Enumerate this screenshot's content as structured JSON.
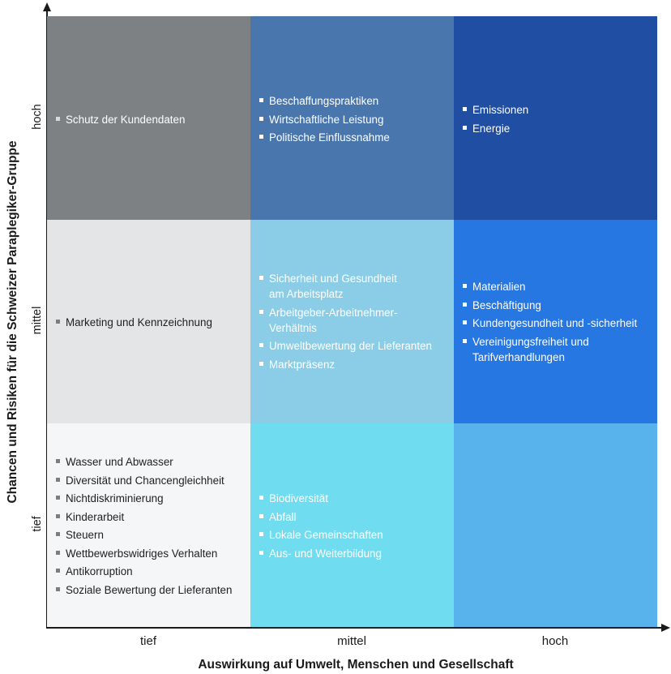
{
  "axis_titles": {
    "y": "Chancen und Risiken für die Schweizer Paraplegiker-Gruppe",
    "x": "Auswirkung auf Umwelt, Menschen und Gesellschaft"
  },
  "y_levels": [
    "hoch",
    "mittel",
    "tief"
  ],
  "x_levels": [
    "tief",
    "mittel",
    "hoch"
  ],
  "colors": {
    "hoch-tief": "#7e8184",
    "hoch-mittel": "#4976ad",
    "hoch-hoch": "#1f4ea2",
    "mittel-tief": "#e3e5e7",
    "mittel-mittel": "#8bcde6",
    "mittel-hoch": "#2677e2",
    "tief-tief": "#f5f6f7",
    "tief-mittel": "#6fdcf0",
    "tief-hoch": "#58b3ec"
  },
  "cells": {
    "hoch-tief": [
      "Schutz der Kundendaten"
    ],
    "hoch-mittel": [
      "Beschaffungspraktiken",
      "Wirtschaftliche Leistung",
      "Politische Einflussnahme"
    ],
    "hoch-hoch": [
      "Emissionen",
      "Energie"
    ],
    "mittel-tief": [
      "Marketing und Kennzeichnung"
    ],
    "mittel-mittel": [
      "Sicherheit und Gesundheit\nam Arbeitsplatz",
      "Arbeitgeber-Arbeitnehmer-\nVerhältnis",
      "Umweltbewertung der Lieferanten",
      "Marktpräsenz"
    ],
    "mittel-hoch": [
      "Materialien",
      "Beschäftigung",
      "Kundengesundheit und -sicherheit",
      "Vereinigungsfreiheit und\nTarifverhandlungen"
    ],
    "tief-tief": [
      "Wasser und Abwasser",
      "Diversität und Chancengleichheit",
      "Nichtdiskriminierung",
      "Kinderarbeit",
      "Steuern",
      "Wettbewerbswidriges Verhalten",
      "Antikorruption",
      "Soziale Bewertung der Lieferanten"
    ],
    "tief-mittel": [
      "Biodiversität",
      "Abfall",
      "Lokale Gemeinschaften",
      "Aus- und Weiterbildung"
    ],
    "tief-hoch": []
  }
}
